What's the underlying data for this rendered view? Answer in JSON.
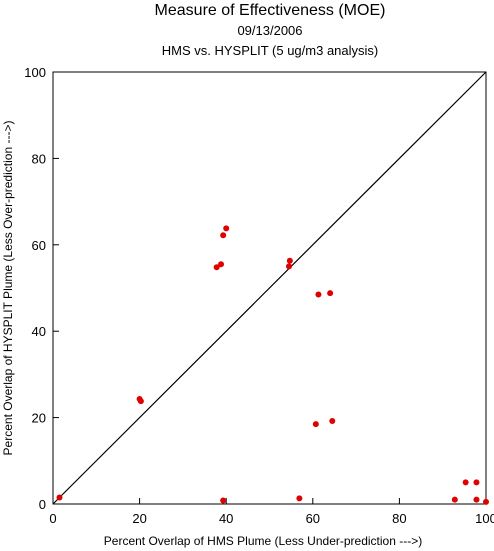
{
  "chart_data": {
    "type": "scatter",
    "title": "Measure of Effectiveness (MOE)",
    "subtitle_date": "09/13/2006",
    "subtitle_analysis": "HMS vs. HYSPLIT  (5 ug/m3 analysis)",
    "xlabel": "Percent Overlap of HMS Plume (Less Under-prediction --->)",
    "ylabel": "Percent Overlap of HYSPLIT Plume (Less Over-prediction --->)",
    "xlim": [
      0,
      100
    ],
    "ylim": [
      0,
      100
    ],
    "xticks": [
      "0",
      "20",
      "40",
      "60",
      "80",
      "100"
    ],
    "yticks": [
      "0",
      "20",
      "40",
      "60",
      "80",
      "100"
    ],
    "reference_line": "y = x",
    "grid": false,
    "marker_color": "#e00000",
    "points": [
      {
        "x": 1.5,
        "y": 1.5
      },
      {
        "x": 20.0,
        "y": 24.3
      },
      {
        "x": 20.3,
        "y": 23.8
      },
      {
        "x": 37.8,
        "y": 54.8
      },
      {
        "x": 38.8,
        "y": 55.5
      },
      {
        "x": 39.3,
        "y": 62.2
      },
      {
        "x": 40.0,
        "y": 63.8
      },
      {
        "x": 39.3,
        "y": 0.8
      },
      {
        "x": 54.5,
        "y": 55.0
      },
      {
        "x": 54.7,
        "y": 56.3
      },
      {
        "x": 56.9,
        "y": 1.3
      },
      {
        "x": 60.7,
        "y": 18.5
      },
      {
        "x": 61.3,
        "y": 48.5
      },
      {
        "x": 64.0,
        "y": 48.8
      },
      {
        "x": 64.5,
        "y": 19.2
      },
      {
        "x": 92.8,
        "y": 1.0
      },
      {
        "x": 95.3,
        "y": 5.0
      },
      {
        "x": 97.8,
        "y": 5.0
      },
      {
        "x": 97.8,
        "y": 1.0
      },
      {
        "x": 100.0,
        "y": 0.5
      }
    ]
  }
}
